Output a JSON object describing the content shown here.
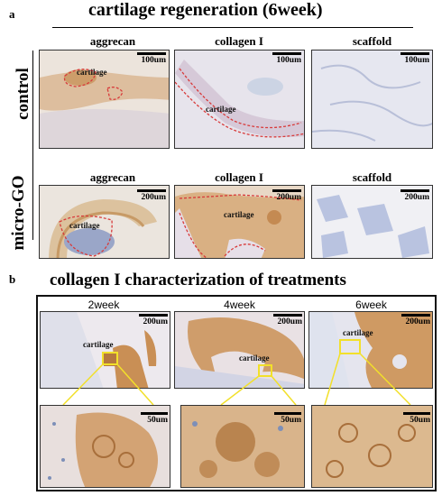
{
  "figure": {
    "panel_a_letter": "a",
    "panel_a_title": "cartilage regeneration (6week)",
    "columns": [
      "aggrecan",
      "collagen I",
      "scaffold"
    ],
    "rows": [
      "control",
      "micro-GO"
    ],
    "control": {
      "scale_labels": [
        "100um",
        "100um",
        "100um"
      ],
      "annotations": [
        "cartilage",
        "cartilage"
      ]
    },
    "microgo": {
      "scale_labels": [
        "200um",
        "200um",
        "200um"
      ],
      "annotations": [
        "cartilage",
        "cartilage"
      ]
    },
    "panel_b_letter": "b",
    "panel_b_title": "collagen I  characterization of  treatments",
    "timepoints": [
      "2week",
      "4week",
      "6week"
    ],
    "top_scale_labels": [
      "200um",
      "200um",
      "200um"
    ],
    "top_annotations": [
      "cartilage",
      "cartilage",
      "cartilage"
    ],
    "zoom_scale_labels": [
      "50um",
      "50um",
      "50um"
    ]
  },
  "colors": {
    "tissue_brown": "#c8955a",
    "tissue_light": "#efe6dc",
    "nuclei_blue": "#7d8fb8",
    "outline_red": "#d83a3a",
    "highlight_yellow": "#f2e02a"
  }
}
